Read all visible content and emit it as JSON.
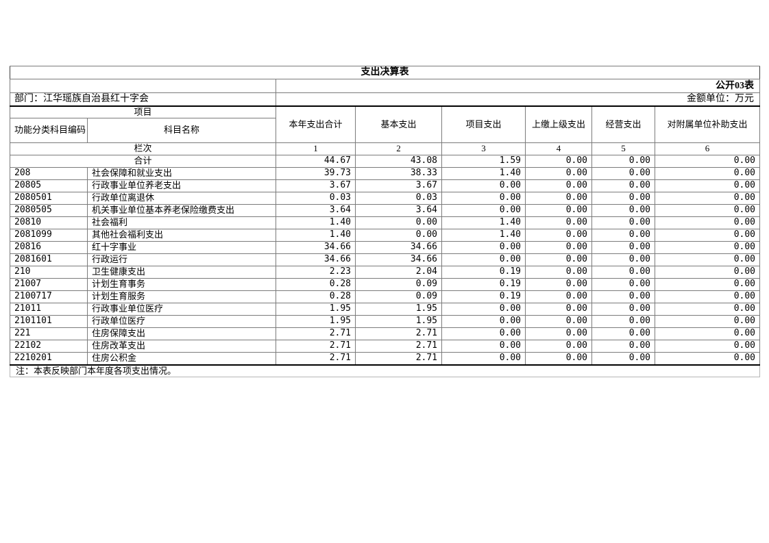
{
  "page": {
    "title": "支出决算表",
    "table_code": "公开03表",
    "department": "部门：江华瑶族自治县红十字会",
    "unit": "金额单位：万元",
    "note": "注：本表反映部门本年度各项支出情况。"
  },
  "table": {
    "group_header": "项目",
    "sub_headers": [
      "功能分类科目编码",
      "科目名称"
    ],
    "value_headers": [
      "本年支出合计",
      "基本支出",
      "项目支出",
      "上缴上级支出",
      "经营支出",
      "对附属单位补助支出"
    ],
    "lanci_label": "栏次",
    "lanci_numbers": [
      "1",
      "2",
      "3",
      "4",
      "5",
      "6"
    ],
    "total_row": {
      "label": "合计",
      "values": [
        "44.67",
        "43.08",
        "1.59",
        "0.00",
        "0.00",
        "0.00"
      ]
    },
    "rows": [
      {
        "code": "208",
        "name": "社会保障和就业支出",
        "values": [
          "39.73",
          "38.33",
          "1.40",
          "0.00",
          "0.00",
          "0.00"
        ]
      },
      {
        "code": "20805",
        "name": "行政事业单位养老支出",
        "values": [
          "3.67",
          "3.67",
          "0.00",
          "0.00",
          "0.00",
          "0.00"
        ]
      },
      {
        "code": "2080501",
        "name": "行政单位离退休",
        "values": [
          "0.03",
          "0.03",
          "0.00",
          "0.00",
          "0.00",
          "0.00"
        ]
      },
      {
        "code": "2080505",
        "name": "机关事业单位基本养老保险缴费支出",
        "values": [
          "3.64",
          "3.64",
          "0.00",
          "0.00",
          "0.00",
          "0.00"
        ]
      },
      {
        "code": "20810",
        "name": "社会福利",
        "values": [
          "1.40",
          "0.00",
          "1.40",
          "0.00",
          "0.00",
          "0.00"
        ]
      },
      {
        "code": "2081099",
        "name": "其他社会福利支出",
        "values": [
          "1.40",
          "0.00",
          "1.40",
          "0.00",
          "0.00",
          "0.00"
        ]
      },
      {
        "code": "20816",
        "name": "红十字事业",
        "values": [
          "34.66",
          "34.66",
          "0.00",
          "0.00",
          "0.00",
          "0.00"
        ]
      },
      {
        "code": "2081601",
        "name": "行政运行",
        "values": [
          "34.66",
          "34.66",
          "0.00",
          "0.00",
          "0.00",
          "0.00"
        ]
      },
      {
        "code": "210",
        "name": "卫生健康支出",
        "values": [
          "2.23",
          "2.04",
          "0.19",
          "0.00",
          "0.00",
          "0.00"
        ]
      },
      {
        "code": "21007",
        "name": "计划生育事务",
        "values": [
          "0.28",
          "0.09",
          "0.19",
          "0.00",
          "0.00",
          "0.00"
        ]
      },
      {
        "code": "2100717",
        "name": "计划生育服务",
        "values": [
          "0.28",
          "0.09",
          "0.19",
          "0.00",
          "0.00",
          "0.00"
        ]
      },
      {
        "code": "21011",
        "name": "行政事业单位医疗",
        "values": [
          "1.95",
          "1.95",
          "0.00",
          "0.00",
          "0.00",
          "0.00"
        ]
      },
      {
        "code": "2101101",
        "name": "行政单位医疗",
        "values": [
          "1.95",
          "1.95",
          "0.00",
          "0.00",
          "0.00",
          "0.00"
        ]
      },
      {
        "code": "221",
        "name": "住房保障支出",
        "values": [
          "2.71",
          "2.71",
          "0.00",
          "0.00",
          "0.00",
          "0.00"
        ]
      },
      {
        "code": "22102",
        "name": "住房改革支出",
        "values": [
          "2.71",
          "2.71",
          "0.00",
          "0.00",
          "0.00",
          "0.00"
        ]
      },
      {
        "code": "2210201",
        "name": "住房公积金",
        "values": [
          "2.71",
          "2.71",
          "0.00",
          "0.00",
          "0.00",
          "0.00"
        ]
      }
    ]
  }
}
